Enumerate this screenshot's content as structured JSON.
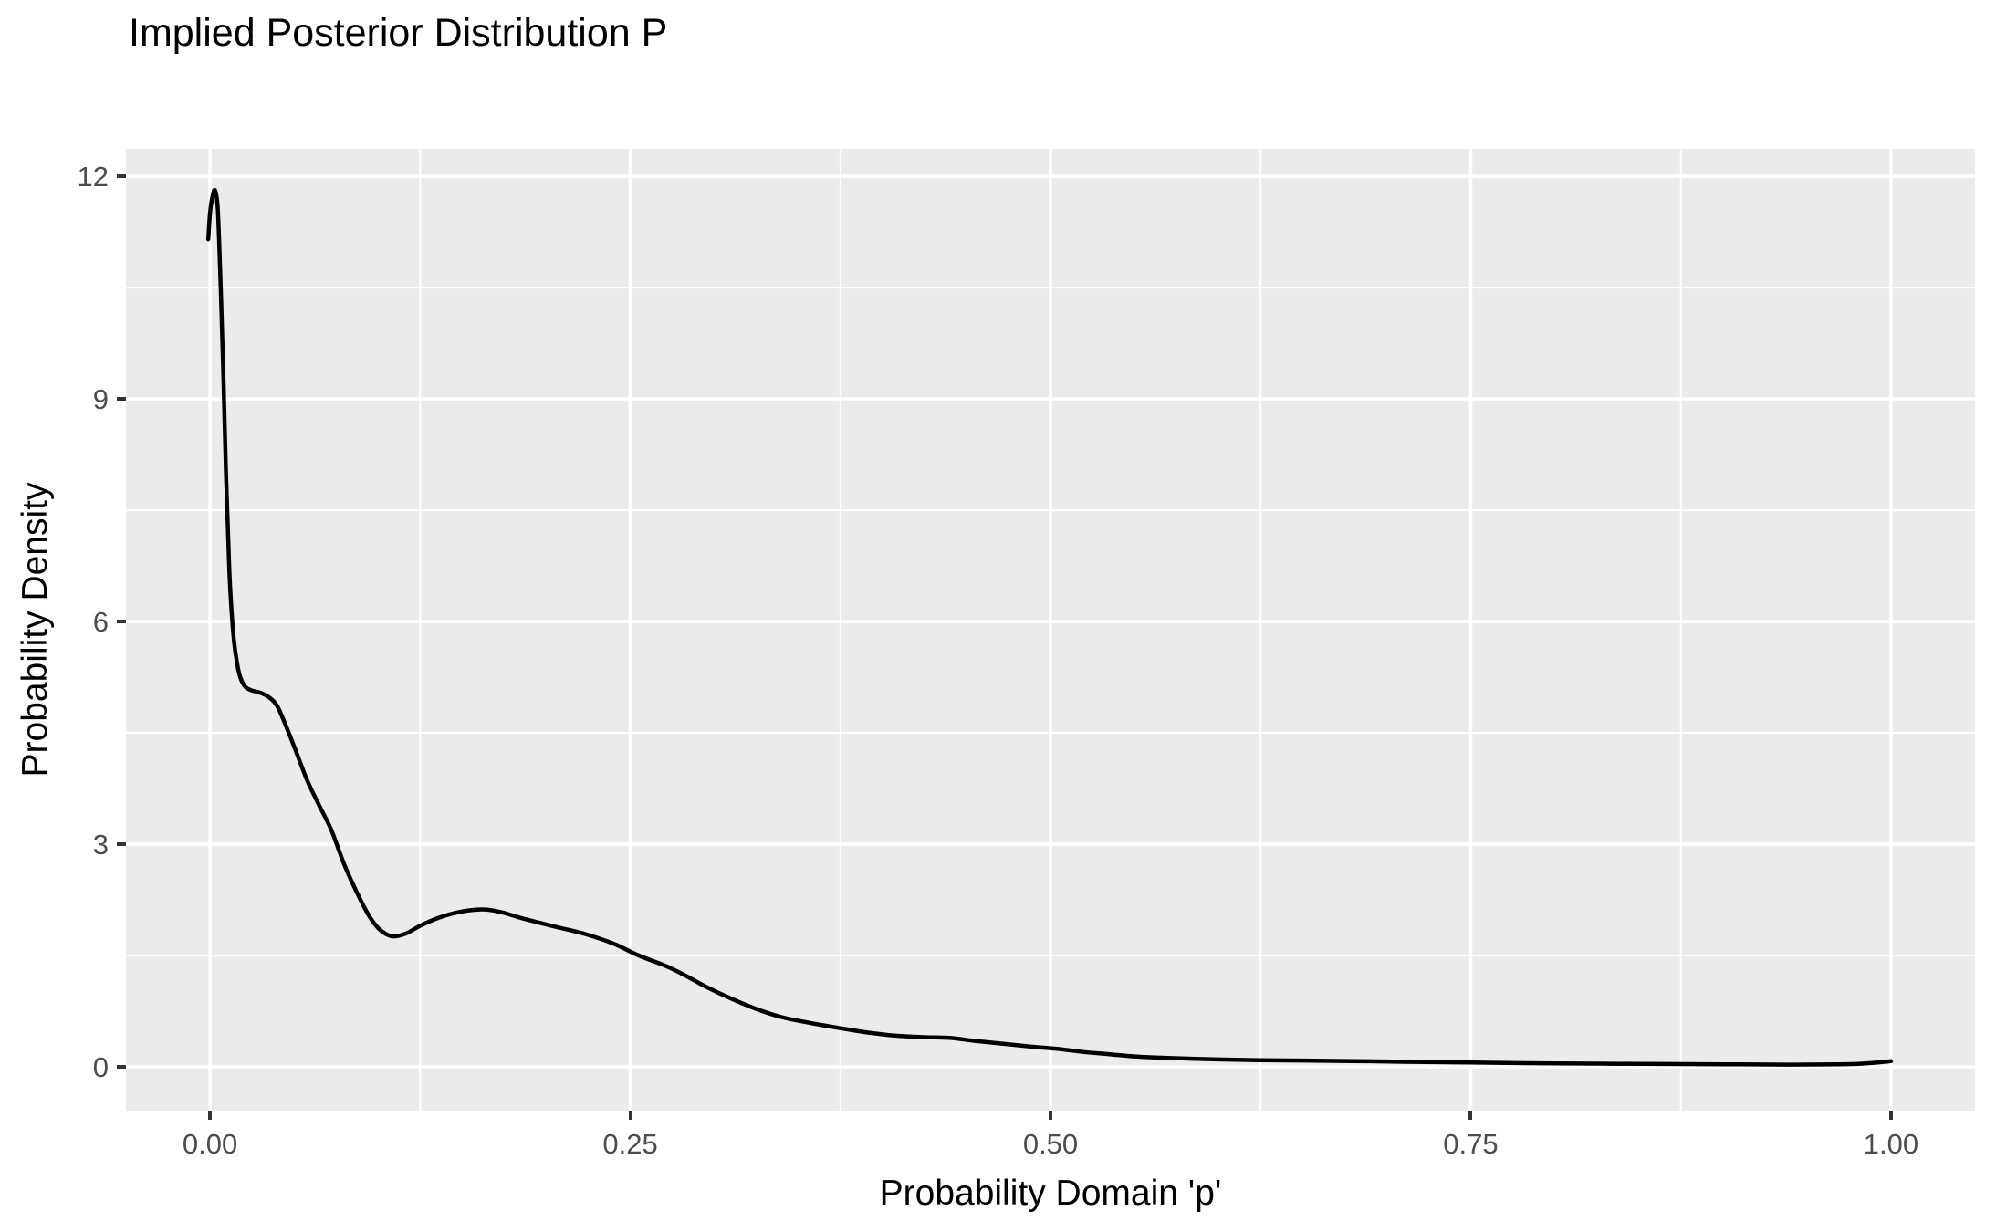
{
  "title": "Implied Posterior Distribution P",
  "axes": {
    "x": {
      "label": "Probability Domain 'p'",
      "ticks": [
        "0.00",
        "0.25",
        "0.50",
        "0.75",
        "1.00"
      ],
      "tick_values": [
        0,
        0.25,
        0.5,
        0.75,
        1
      ],
      "minor_values": [
        0.125,
        0.375,
        0.625,
        0.875
      ]
    },
    "y": {
      "label": "Probability Density",
      "ticks": [
        "0",
        "3",
        "6",
        "9",
        "12"
      ],
      "tick_values": [
        0,
        3,
        6,
        9,
        12
      ],
      "minor_values": [
        1.5,
        4.5,
        7.5,
        10.5
      ]
    }
  },
  "style": {
    "panel_background": "#EBEBEB",
    "grid_major_color": "#FFFFFF",
    "grid_minor_color": "#FFFFFF",
    "grid_major_width": 3.5,
    "grid_minor_width": 2,
    "tick_label_color": "#4D4D4D",
    "tick_mark_color": "#333333",
    "title_color": "#000000",
    "curve_color": "#000000",
    "curve_width": 4.5
  },
  "chart_data": {
    "type": "line",
    "title": "Implied Posterior Distribution P",
    "xlabel": "Probability Domain 'p'",
    "ylabel": "Probability Density",
    "xlim": [
      -0.05,
      1.05
    ],
    "ylim": [
      -0.59,
      12.37
    ],
    "x_ticks": [
      0,
      0.25,
      0.5,
      0.75,
      1
    ],
    "y_ticks": [
      0,
      3,
      6,
      9,
      12
    ],
    "grid": "on",
    "legend": "none",
    "series": [
      {
        "name": "posterior-density",
        "color": "#000000",
        "points": [
          [
            -0.001,
            11.15
          ],
          [
            0.0,
            11.5
          ],
          [
            0.0015,
            11.73
          ],
          [
            0.003,
            11.81
          ],
          [
            0.0045,
            11.6
          ],
          [
            0.0055,
            11.1
          ],
          [
            0.0065,
            10.4
          ],
          [
            0.008,
            9.3
          ],
          [
            0.0095,
            8.0
          ],
          [
            0.011,
            7.0
          ],
          [
            0.012,
            6.45
          ],
          [
            0.014,
            5.8
          ],
          [
            0.016,
            5.45
          ],
          [
            0.018,
            5.25
          ],
          [
            0.021,
            5.12
          ],
          [
            0.025,
            5.07
          ],
          [
            0.03,
            5.04
          ],
          [
            0.035,
            4.98
          ],
          [
            0.04,
            4.86
          ],
          [
            0.046,
            4.55
          ],
          [
            0.052,
            4.2
          ],
          [
            0.058,
            3.85
          ],
          [
            0.065,
            3.52
          ],
          [
            0.072,
            3.2
          ],
          [
            0.08,
            2.72
          ],
          [
            0.088,
            2.32
          ],
          [
            0.095,
            2.02
          ],
          [
            0.101,
            1.85
          ],
          [
            0.108,
            1.76
          ],
          [
            0.116,
            1.79
          ],
          [
            0.125,
            1.9
          ],
          [
            0.135,
            2.0
          ],
          [
            0.145,
            2.07
          ],
          [
            0.155,
            2.11
          ],
          [
            0.164,
            2.12
          ],
          [
            0.174,
            2.08
          ],
          [
            0.186,
            2.0
          ],
          [
            0.205,
            1.89
          ],
          [
            0.223,
            1.79
          ],
          [
            0.24,
            1.66
          ],
          [
            0.255,
            1.5
          ],
          [
            0.27,
            1.37
          ],
          [
            0.282,
            1.24
          ],
          [
            0.295,
            1.08
          ],
          [
            0.31,
            0.92
          ],
          [
            0.325,
            0.78
          ],
          [
            0.34,
            0.67
          ],
          [
            0.355,
            0.6
          ],
          [
            0.375,
            0.52
          ],
          [
            0.392,
            0.46
          ],
          [
            0.408,
            0.42
          ],
          [
            0.425,
            0.4
          ],
          [
            0.44,
            0.39
          ],
          [
            0.455,
            0.35
          ],
          [
            0.472,
            0.31
          ],
          [
            0.49,
            0.27
          ],
          [
            0.505,
            0.24
          ],
          [
            0.52,
            0.2
          ],
          [
            0.535,
            0.17
          ],
          [
            0.55,
            0.14
          ],
          [
            0.57,
            0.12
          ],
          [
            0.6,
            0.1
          ],
          [
            0.625,
            0.09
          ],
          [
            0.65,
            0.085
          ],
          [
            0.68,
            0.078
          ],
          [
            0.71,
            0.068
          ],
          [
            0.75,
            0.058
          ],
          [
            0.8,
            0.047
          ],
          [
            0.85,
            0.04
          ],
          [
            0.9,
            0.035
          ],
          [
            0.94,
            0.03
          ],
          [
            0.968,
            0.033
          ],
          [
            0.982,
            0.042
          ],
          [
            0.992,
            0.058
          ],
          [
            0.998,
            0.072
          ],
          [
            1.0,
            0.076
          ]
        ]
      }
    ]
  }
}
